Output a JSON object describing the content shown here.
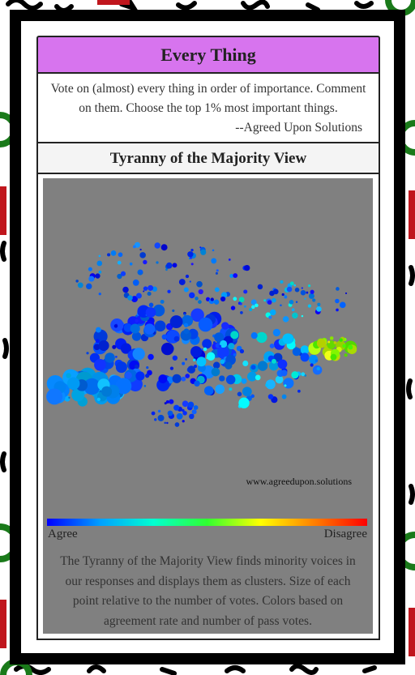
{
  "header": {
    "title": "Every Thing",
    "description": "Vote on (almost) every thing in order of importance. Comment on them. Choose the top 1% most important things.",
    "signature": "--Agreed Upon Solutions"
  },
  "view": {
    "title": "Tyranny of the Majority View",
    "watermark": "www.agreedupon.solutions",
    "scale_low": "Agree",
    "scale_high": "Disagree",
    "caption": "The Tyranny of the Majority View finds minority voices in our responses and displays them as clusters. Size of each point relative to the number of votes. Colors based on agreement rate and number of pass votes."
  }
}
